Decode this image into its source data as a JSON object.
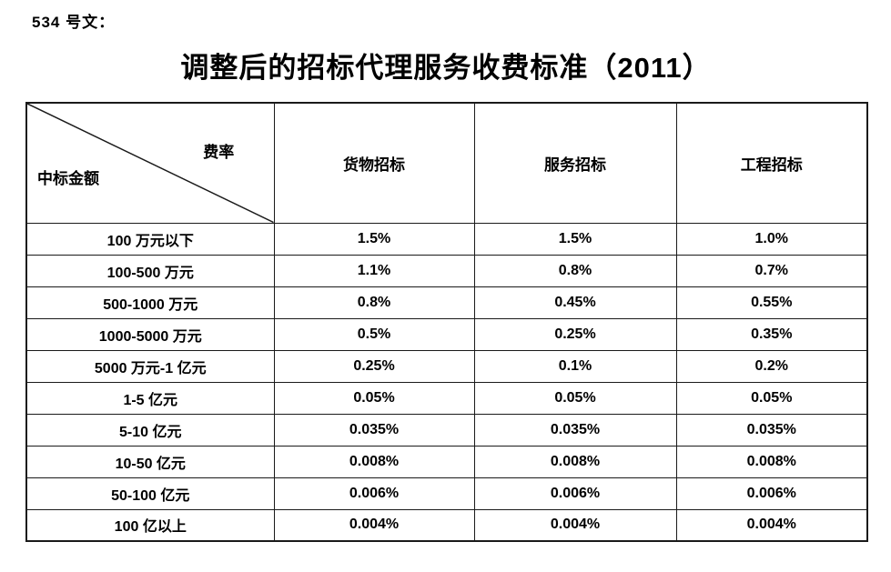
{
  "page": {
    "doc_label": "534 号文：",
    "title": "调整后的招标代理服务收费标准（2011）"
  },
  "table": {
    "corner": {
      "fee_rate": "费率",
      "bid_amount": "中标金额"
    },
    "columns": [
      "货物招标",
      "服务招标",
      "工程招标"
    ],
    "rows": [
      {
        "label": "100 万元以下",
        "values": [
          "1.5%",
          "1.5%",
          "1.0%"
        ]
      },
      {
        "label": "100-500 万元",
        "values": [
          "1.1%",
          "0.8%",
          "0.7%"
        ]
      },
      {
        "label": "500-1000 万元",
        "values": [
          "0.8%",
          "0.45%",
          "0.55%"
        ]
      },
      {
        "label": "1000-5000 万元",
        "values": [
          "0.5%",
          "0.25%",
          "0.35%"
        ]
      },
      {
        "label": "5000 万元-1 亿元",
        "values": [
          "0.25%",
          "0.1%",
          "0.2%"
        ]
      },
      {
        "label": "1-5 亿元",
        "values": [
          "0.05%",
          "0.05%",
          "0.05%"
        ]
      },
      {
        "label": "5-10 亿元",
        "values": [
          "0.035%",
          "0.035%",
          "0.035%"
        ]
      },
      {
        "label": "10-50 亿元",
        "values": [
          "0.008%",
          "0.008%",
          "0.008%"
        ]
      },
      {
        "label": "50-100 亿元",
        "values": [
          "0.006%",
          "0.006%",
          "0.006%"
        ]
      },
      {
        "label": "100 亿以上",
        "values": [
          "0.004%",
          "0.004%",
          "0.004%"
        ]
      }
    ],
    "colors": {
      "text": "#000000",
      "border": "#1a1a1a",
      "background": "#ffffff"
    }
  }
}
